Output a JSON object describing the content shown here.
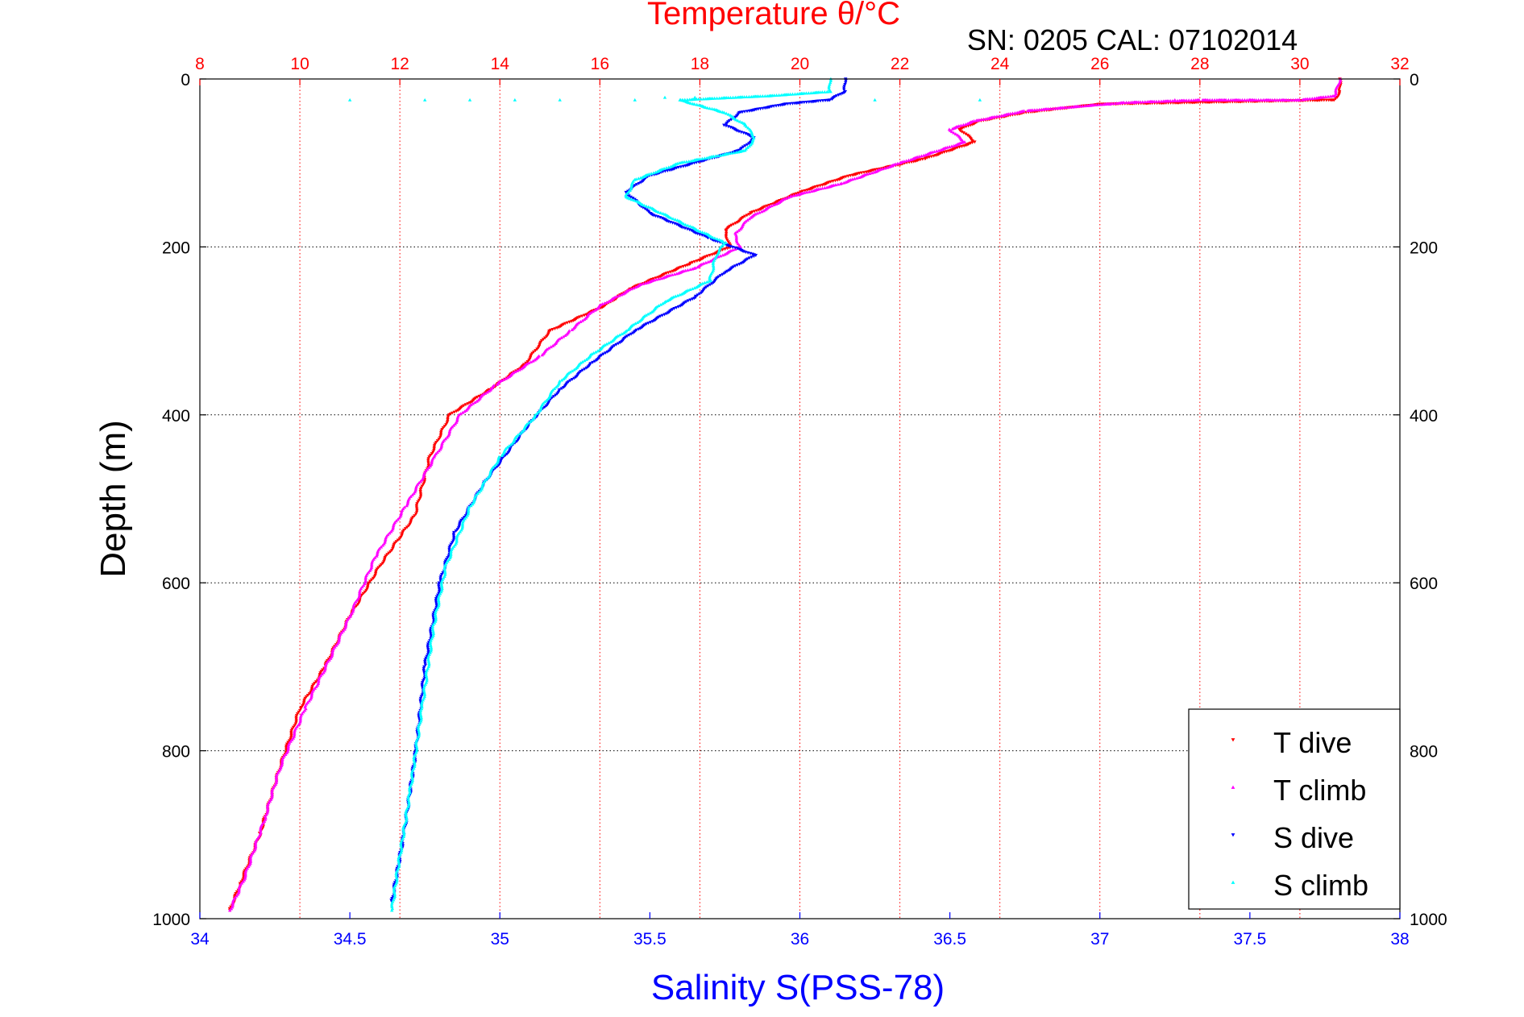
{
  "chart_data": {
    "type": "scatter",
    "title": "Temperature θ/°C",
    "annotation": "SN: 0205  CAL: 07102014",
    "ylabel": "Depth (m)",
    "xlabel_bottom": "Salinity S(PSS-78)",
    "xlabel_top": "Temperature θ/°C",
    "ylim": [
      0,
      1000
    ],
    "y_reversed": true,
    "salinity_lim": [
      34,
      38
    ],
    "temperature_lim": [
      8,
      32
    ],
    "y_ticks": [
      "0",
      "200",
      "400",
      "600",
      "800",
      "1000"
    ],
    "salinity_ticks": [
      "34",
      "34.5",
      "35",
      "35.5",
      "36",
      "36.5",
      "37",
      "37.5",
      "38"
    ],
    "temperature_ticks": [
      "8",
      "10",
      "12",
      "14",
      "16",
      "18",
      "20",
      "22",
      "24",
      "26",
      "28",
      "30",
      "32"
    ],
    "grid": true,
    "legend_position": "bottom-right",
    "colors": {
      "temperature_axis": "#ff0000",
      "salinity_axis": "#0000ff",
      "t_dive": "#ff0000",
      "t_climb": "#ff00ff",
      "s_dive": "#0000ff",
      "s_climb": "#00ffff"
    },
    "series": [
      {
        "name": "T dive",
        "axis": "temperature",
        "marker": "down-triangle",
        "color": "#ff0000",
        "points": [
          [
            30.8,
            0
          ],
          [
            30.8,
            15
          ],
          [
            30.7,
            25
          ],
          [
            26.0,
            30
          ],
          [
            24.5,
            40
          ],
          [
            23.6,
            50
          ],
          [
            23.2,
            60
          ],
          [
            23.5,
            75
          ],
          [
            22.5,
            95
          ],
          [
            21.0,
            115
          ],
          [
            20.0,
            135
          ],
          [
            19.0,
            160
          ],
          [
            18.5,
            180
          ],
          [
            18.6,
            200
          ],
          [
            17.8,
            220
          ],
          [
            16.6,
            250
          ],
          [
            16.1,
            270
          ],
          [
            15.0,
            300
          ],
          [
            14.5,
            340
          ],
          [
            13.8,
            370
          ],
          [
            13.0,
            400
          ],
          [
            12.6,
            450
          ],
          [
            12.3,
            520
          ],
          [
            11.6,
            580
          ],
          [
            11.0,
            640
          ],
          [
            10.5,
            700
          ],
          [
            10.0,
            750
          ],
          [
            9.6,
            820
          ],
          [
            9.2,
            900
          ],
          [
            8.8,
            960
          ],
          [
            8.6,
            990
          ]
        ]
      },
      {
        "name": "T climb",
        "axis": "temperature",
        "marker": "up-triangle",
        "color": "#ff00ff",
        "points": [
          [
            30.8,
            0
          ],
          [
            30.7,
            20
          ],
          [
            30.0,
            25
          ],
          [
            28.0,
            25
          ],
          [
            26.5,
            28
          ],
          [
            24.5,
            38
          ],
          [
            23.5,
            50
          ],
          [
            23.0,
            60
          ],
          [
            23.3,
            75
          ],
          [
            22.0,
            100
          ],
          [
            20.8,
            125
          ],
          [
            19.8,
            140
          ],
          [
            19.0,
            165
          ],
          [
            18.7,
            185
          ],
          [
            18.8,
            200
          ],
          [
            17.9,
            225
          ],
          [
            16.8,
            245
          ],
          [
            16.0,
            270
          ],
          [
            15.4,
            300
          ],
          [
            14.8,
            330
          ],
          [
            13.9,
            365
          ],
          [
            13.2,
            400
          ],
          [
            12.7,
            450
          ],
          [
            12.1,
            510
          ],
          [
            11.5,
            570
          ],
          [
            11.0,
            640
          ],
          [
            10.6,
            690
          ],
          [
            10.1,
            750
          ],
          [
            9.6,
            820
          ],
          [
            9.3,
            880
          ],
          [
            8.9,
            950
          ],
          [
            8.6,
            990
          ]
        ]
      },
      {
        "name": "S dive",
        "axis": "salinity",
        "marker": "down-triangle",
        "color": "#0000ff",
        "points": [
          [
            36.15,
            0
          ],
          [
            36.15,
            15
          ],
          [
            36.1,
            25
          ],
          [
            35.95,
            30
          ],
          [
            35.8,
            40
          ],
          [
            35.75,
            55
          ],
          [
            35.85,
            70
          ],
          [
            35.8,
            85
          ],
          [
            35.65,
            100
          ],
          [
            35.5,
            115
          ],
          [
            35.42,
            135
          ],
          [
            35.5,
            160
          ],
          [
            35.7,
            190
          ],
          [
            35.85,
            210
          ],
          [
            35.75,
            230
          ],
          [
            35.65,
            260
          ],
          [
            35.45,
            300
          ],
          [
            35.3,
            340
          ],
          [
            35.2,
            370
          ],
          [
            35.1,
            410
          ],
          [
            34.95,
            480
          ],
          [
            34.85,
            540
          ],
          [
            34.8,
            600
          ],
          [
            34.75,
            700
          ],
          [
            34.72,
            800
          ],
          [
            34.68,
            900
          ],
          [
            34.64,
            980
          ]
        ]
      },
      {
        "name": "S climb",
        "axis": "salinity",
        "marker": "up-triangle",
        "color": "#00ffff",
        "points": [
          [
            36.1,
            0
          ],
          [
            36.1,
            15
          ],
          [
            35.9,
            20
          ],
          [
            35.6,
            25
          ],
          [
            35.65,
            30
          ],
          [
            35.75,
            40
          ],
          [
            35.82,
            55
          ],
          [
            35.85,
            70
          ],
          [
            35.82,
            85
          ],
          [
            35.6,
            100
          ],
          [
            35.45,
            120
          ],
          [
            35.42,
            140
          ],
          [
            35.6,
            170
          ],
          [
            35.75,
            195
          ],
          [
            35.72,
            210
          ],
          [
            35.7,
            240
          ],
          [
            35.55,
            265
          ],
          [
            35.42,
            300
          ],
          [
            35.3,
            330
          ],
          [
            35.2,
            360
          ],
          [
            35.12,
            400
          ],
          [
            35.0,
            450
          ],
          [
            34.9,
            510
          ],
          [
            34.82,
            580
          ],
          [
            34.78,
            650
          ],
          [
            34.74,
            750
          ],
          [
            34.7,
            850
          ],
          [
            34.66,
            940
          ],
          [
            34.64,
            990
          ]
        ]
      },
      {
        "name": "",
        "axis": "salinity",
        "marker": "up-triangle",
        "color": "#00ffff",
        "points": [
          [
            34.5,
            25
          ],
          [
            34.75,
            25
          ],
          [
            34.9,
            25
          ],
          [
            35.05,
            25
          ],
          [
            35.2,
            25
          ],
          [
            35.45,
            25
          ],
          [
            35.55,
            22
          ],
          [
            35.65,
            22
          ],
          [
            36.25,
            25
          ],
          [
            36.6,
            25
          ]
        ]
      },
      {
        "name": "",
        "axis": "temperature",
        "marker": "up-triangle",
        "color": "#ff00ff",
        "points": [
          [
            29.5,
            25
          ],
          [
            29.0,
            25
          ],
          [
            28.5,
            25
          ],
          [
            27.5,
            25
          ],
          [
            26.7,
            28
          ],
          [
            26.2,
            30
          ]
        ]
      }
    ],
    "legend": [
      "T dive",
      "T climb",
      "S dive",
      "S climb"
    ]
  }
}
